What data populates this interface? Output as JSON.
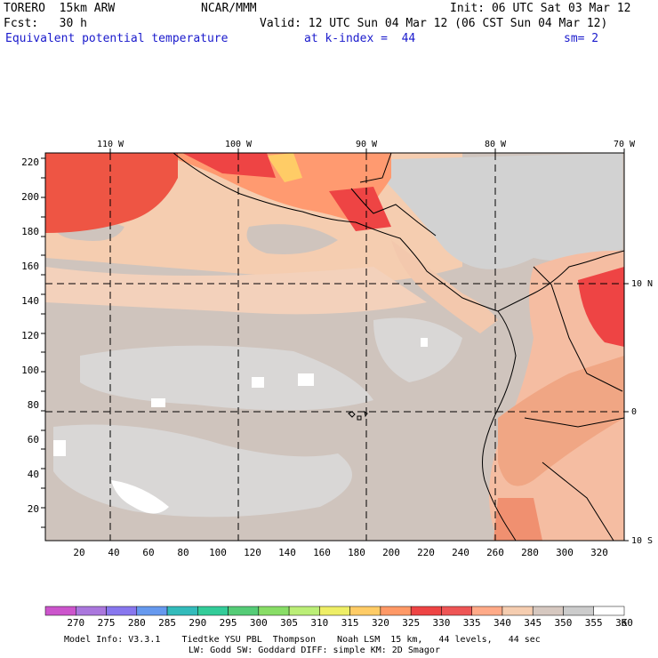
{
  "header": {
    "model_line": "TORERO  15km ARW",
    "center": "NCAR/MMM",
    "init": "Init: 06 UTC Sat 03 Mar 12",
    "fcst": "Fcst:   30 h",
    "valid": "Valid: 12 UTC Sun 04 Mar 12 (06 CST Sun 04 Mar 12)",
    "field": "Equivalent potential temperature",
    "level": "at k-index =  44",
    "smooth": "sm= 2"
  },
  "map": {
    "top_lon_labels": [
      "110 W",
      "100 W",
      "90 W",
      "80 W",
      "70 W"
    ],
    "right_lat_labels": [
      "10 N",
      "0",
      "10 S"
    ],
    "y_ticks": [
      "20",
      "40",
      "60",
      "80",
      "100",
      "120",
      "140",
      "160",
      "180",
      "200",
      "220"
    ],
    "x_ticks": [
      "20",
      "40",
      "60",
      "80",
      "100",
      "120",
      "140",
      "160",
      "180",
      "200",
      "220",
      "240",
      "260",
      "280",
      "300",
      "320"
    ]
  },
  "colorbar": {
    "labels": [
      "270",
      "275",
      "280",
      "285",
      "290",
      "295",
      "300",
      "305",
      "310",
      "315",
      "320",
      "325",
      "330",
      "335",
      "340",
      "345",
      "350",
      "355",
      "360",
      "K"
    ],
    "colors": [
      "#cc55cc",
      "#aa77dd",
      "#8877ee",
      "#6699ee",
      "#33bbbb",
      "#33cc99",
      "#55cc77",
      "#88dd66",
      "#bbee77",
      "#eeee66",
      "#ffcc66",
      "#ff9966",
      "#ee4444",
      "#ee5555",
      "#ffaa88",
      "#f5cdb0",
      "#d6c8c0",
      "#cccccc",
      "#ffffff"
    ]
  },
  "footer": {
    "line1": "Model Info: V3.3.1    Tiedtke YSU PBL  Thompson    Noah LSM  15 km,   44 levels,   44 sec",
    "line2": "LW: Godd SW: Goddard DIFF: simple KM: 2D Smagor"
  }
}
